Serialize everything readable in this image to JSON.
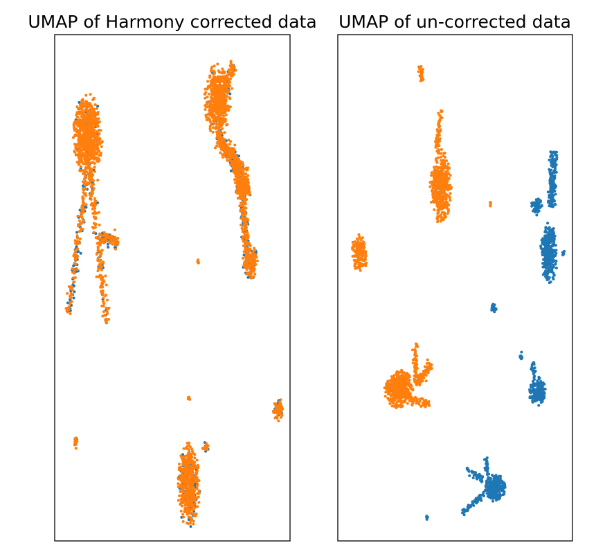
{
  "colors": {
    "batch_a": "#1f77b4",
    "batch_b": "#ff7f0e"
  },
  "chart_data": [
    {
      "type": "scatter",
      "title": "UMAP of Harmony corrected data",
      "xlabel": "",
      "ylabel": "",
      "ticks": false,
      "grid": false,
      "legend": "none",
      "xlim": [
        0,
        100
      ],
      "ylim": [
        0,
        100
      ],
      "series_colors": [
        "#1f77b4",
        "#ff7f0e"
      ],
      "clusters": [
        {
          "kind": "blob",
          "cx": 14,
          "cy": 80,
          "rx": 6,
          "ry": 8,
          "n": 720,
          "mix": 0.05
        },
        {
          "kind": "line",
          "x1": 14,
          "y1": 73,
          "x2": 6,
          "y2": 45,
          "width": 1.6,
          "n": 180,
          "mix": 0.4
        },
        {
          "kind": "line",
          "x1": 15,
          "y1": 73,
          "x2": 22,
          "y2": 43,
          "width": 1.6,
          "n": 180,
          "mix": 0.2
        },
        {
          "kind": "line",
          "x1": 19,
          "y1": 60,
          "x2": 27,
          "y2": 59,
          "width": 1.3,
          "n": 100,
          "mix": 0.3
        },
        {
          "kind": "blob",
          "cx": 69,
          "cy": 87,
          "rx": 5.5,
          "ry": 7,
          "n": 520,
          "mix": 0.06
        },
        {
          "kind": "line",
          "x1": 76,
          "y1": 94,
          "x2": 70,
          "y2": 86,
          "width": 1.6,
          "n": 130,
          "mix": 0.15
        },
        {
          "kind": "line",
          "x1": 69,
          "y1": 80,
          "x2": 79,
          "y2": 73,
          "width": 2.2,
          "n": 320,
          "mix": 0.12
        },
        {
          "kind": "blob",
          "cx": 80,
          "cy": 70,
          "rx": 3.2,
          "ry": 4.5,
          "n": 240,
          "mix": 0.12
        },
        {
          "kind": "line",
          "x1": 80,
          "y1": 66,
          "x2": 82,
          "y2": 56,
          "width": 1.6,
          "n": 170,
          "mix": 0.4
        },
        {
          "kind": "blob",
          "cx": 83,
          "cy": 55,
          "rx": 3.2,
          "ry": 3.2,
          "n": 190,
          "mix": 0.35
        },
        {
          "kind": "blob",
          "cx": 57,
          "cy": 11,
          "rx": 4.5,
          "ry": 8,
          "n": 620,
          "mix": 0.25
        },
        {
          "kind": "blob",
          "cx": 95,
          "cy": 26,
          "rx": 2,
          "ry": 2.2,
          "n": 90,
          "mix": 0.3
        },
        {
          "kind": "blob",
          "cx": 9,
          "cy": 19.5,
          "rx": 0.8,
          "ry": 1.2,
          "n": 25,
          "mix": 0.15
        },
        {
          "kind": "blob",
          "cx": 64,
          "cy": 18.5,
          "rx": 1.3,
          "ry": 0.9,
          "n": 25,
          "mix": 0.3
        },
        {
          "kind": "blob",
          "cx": 57,
          "cy": 28.2,
          "rx": 0.5,
          "ry": 0.5,
          "n": 8,
          "mix": 0.0
        },
        {
          "kind": "blob",
          "cx": 61,
          "cy": 55.2,
          "rx": 0.4,
          "ry": 0.4,
          "n": 6,
          "mix": 0.0
        }
      ]
    },
    {
      "type": "scatter",
      "title": "UMAP of un-corrected data",
      "xlabel": "",
      "ylabel": "",
      "ticks": false,
      "grid": false,
      "legend": "none",
      "xlim": [
        0,
        100
      ],
      "ylim": [
        0,
        100
      ],
      "series_colors": [
        "#1f77b4",
        "#ff7f0e"
      ],
      "clusters": [
        {
          "kind": "blob",
          "cx": 44,
          "cy": 70,
          "rx": 4.5,
          "ry": 7,
          "n": 430,
          "mix": 0.0
        },
        {
          "kind": "line",
          "x1": 42,
          "y1": 77,
          "x2": 44,
          "y2": 85,
          "width": 1.1,
          "n": 55,
          "mix": 0.0
        },
        {
          "kind": "line",
          "x1": 35,
          "y1": 94,
          "x2": 36,
          "y2": 91,
          "width": 0.8,
          "n": 30,
          "mix": 0.0
        },
        {
          "kind": "blob",
          "cx": 9,
          "cy": 57,
          "rx": 3,
          "ry": 3.6,
          "n": 130,
          "mix": 0.0
        },
        {
          "kind": "blob",
          "cx": 26,
          "cy": 30,
          "rx": 6,
          "ry": 3.6,
          "n": 380,
          "mix": 0.0
        },
        {
          "kind": "line",
          "x1": 33,
          "y1": 31,
          "x2": 40,
          "y2": 35,
          "width": 1.2,
          "n": 70,
          "mix": 0.0
        },
        {
          "kind": "line",
          "x1": 33,
          "y1": 31,
          "x2": 33,
          "y2": 39,
          "width": 1.0,
          "n": 55,
          "mix": 0.0
        },
        {
          "kind": "line",
          "x1": 30,
          "y1": 28,
          "x2": 39,
          "y2": 27,
          "width": 1.0,
          "n": 45,
          "mix": 0.0
        },
        {
          "kind": "blob",
          "cx": 90,
          "cy": 57,
          "rx": 3.5,
          "ry": 6,
          "n": 310,
          "mix": 1.0
        },
        {
          "kind": "line",
          "x1": 91,
          "y1": 66,
          "x2": 92,
          "y2": 77,
          "width": 1.6,
          "n": 170,
          "mix": 1.0
        },
        {
          "kind": "blob",
          "cx": 85,
          "cy": 66,
          "rx": 2.5,
          "ry": 1.6,
          "n": 55,
          "mix": 1.0
        },
        {
          "kind": "blob",
          "cx": 85,
          "cy": 29.5,
          "rx": 3.6,
          "ry": 2.8,
          "n": 170,
          "mix": 1.0
        },
        {
          "kind": "line",
          "x1": 84,
          "y1": 32,
          "x2": 83,
          "y2": 35.5,
          "width": 0.8,
          "n": 20,
          "mix": 1.0
        },
        {
          "kind": "blob",
          "cx": 67,
          "cy": 10.5,
          "rx": 4.2,
          "ry": 2.6,
          "n": 260,
          "mix": 1.0
        },
        {
          "kind": "line",
          "x1": 64,
          "y1": 10,
          "x2": 53,
          "y2": 5.5,
          "width": 0.9,
          "n": 60,
          "mix": 1.0
        },
        {
          "kind": "line",
          "x1": 62,
          "y1": 12,
          "x2": 55,
          "y2": 14,
          "width": 0.8,
          "n": 35,
          "mix": 1.0
        },
        {
          "kind": "line",
          "x1": 64,
          "y1": 13,
          "x2": 63,
          "y2": 16.5,
          "width": 0.8,
          "n": 30,
          "mix": 1.0
        },
        {
          "kind": "blob",
          "cx": 66.5,
          "cy": 46,
          "rx": 1.3,
          "ry": 0.9,
          "n": 25,
          "mix": 1.0
        },
        {
          "kind": "blob",
          "cx": 78,
          "cy": 36.5,
          "rx": 0.6,
          "ry": 0.9,
          "n": 10,
          "mix": 1.0
        },
        {
          "kind": "blob",
          "cx": 96,
          "cy": 57,
          "rx": 0.6,
          "ry": 0.6,
          "n": 6,
          "mix": 1.0
        },
        {
          "kind": "blob",
          "cx": 38,
          "cy": 4.6,
          "rx": 0.5,
          "ry": 0.4,
          "n": 6,
          "mix": 1.0
        },
        {
          "kind": "blob",
          "cx": 65,
          "cy": 66.5,
          "rx": 0.5,
          "ry": 0.5,
          "n": 6,
          "mix": 0.0
        },
        {
          "kind": "blob",
          "cx": 12,
          "cy": 54.5,
          "rx": 0.6,
          "ry": 0.5,
          "n": 6,
          "mix": 0.0
        }
      ]
    }
  ]
}
